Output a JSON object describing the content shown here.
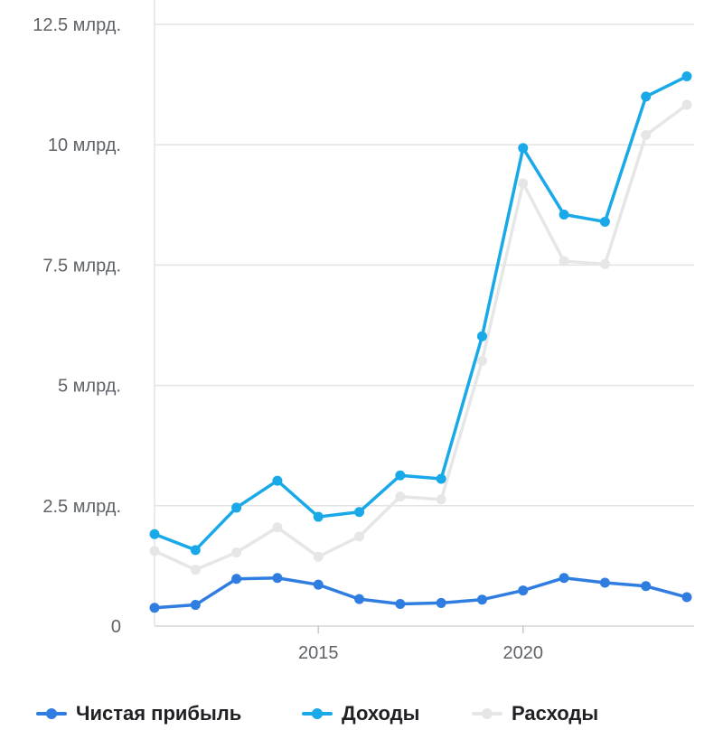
{
  "chart_data": {
    "type": "line",
    "x": [
      2011,
      2012,
      2013,
      2014,
      2015,
      2016,
      2017,
      2018,
      2019,
      2020,
      2021,
      2022,
      2023,
      2024
    ],
    "series": [
      {
        "name": "Чистая прибыль",
        "color": "#2f7de1",
        "values": [
          0.38,
          0.44,
          0.98,
          1.0,
          0.86,
          0.56,
          0.46,
          0.48,
          0.55,
          0.74,
          1.0,
          0.9,
          0.83,
          0.6
        ]
      },
      {
        "name": "Доходы",
        "color": "#19a9e8",
        "values": [
          1.91,
          1.58,
          2.46,
          3.02,
          2.27,
          2.37,
          3.13,
          3.06,
          6.02,
          9.93,
          8.55,
          8.4,
          11.0,
          11.42
        ]
      },
      {
        "name": "Расходы",
        "color": "#e6e6e6",
        "values": [
          1.56,
          1.17,
          1.53,
          2.05,
          1.44,
          1.86,
          2.69,
          2.63,
          5.51,
          9.2,
          7.58,
          7.52,
          10.2,
          10.83
        ]
      }
    ],
    "y_ticks": [
      {
        "value": 0,
        "label": "0"
      },
      {
        "value": 2.5,
        "label": "2.5 млрд."
      },
      {
        "value": 5,
        "label": "5 млрд."
      },
      {
        "value": 7.5,
        "label": "7.5 млрд."
      },
      {
        "value": 10,
        "label": "10 млрд."
      },
      {
        "value": 12.5,
        "label": "12.5 млрд."
      }
    ],
    "x_ticks": [
      {
        "value": 2015,
        "label": "2015"
      },
      {
        "value": 2020,
        "label": "2020"
      }
    ],
    "xlim": [
      2011,
      2024
    ],
    "ylim": [
      0,
      12.5
    ],
    "grid": true,
    "legend_position": "bottom"
  }
}
